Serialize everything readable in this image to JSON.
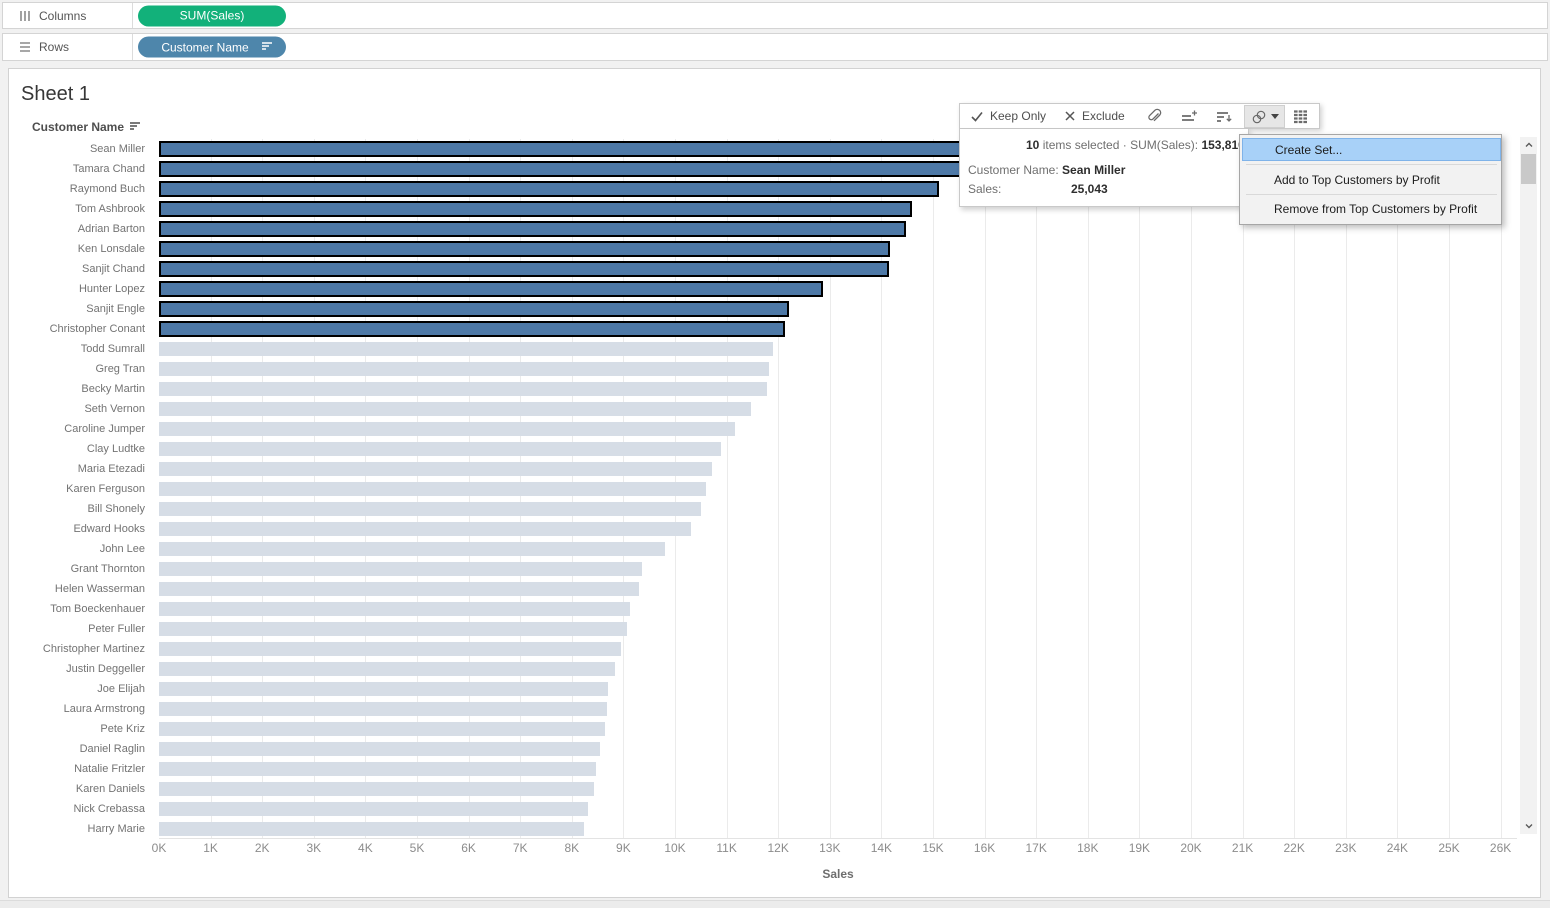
{
  "shelves": {
    "columns": {
      "label": "Columns",
      "pill": "SUM(Sales)"
    },
    "rows": {
      "label": "Rows",
      "pill": "Customer Name"
    }
  },
  "sheet": {
    "title": "Sheet 1"
  },
  "row_header": {
    "label": "Customer Name"
  },
  "axis": {
    "title": "Sales"
  },
  "tooltip": {
    "keep_only": "Keep Only",
    "exclude": "Exclude",
    "summary": {
      "count": "10",
      "items_text": "items selected",
      "separator": "·",
      "measure_label": "SUM(Sales):",
      "measure_value": "153,810"
    },
    "detail": {
      "dimension_label": "Customer Name:",
      "dimension_value": "Sean Miller",
      "measure_label": "Sales:",
      "measure_value": "25,043"
    }
  },
  "context_menu": {
    "highlighted_index": 0,
    "items": [
      "Create Set...",
      "Add to Top Customers by Profit",
      "Remove from Top Customers by Profit"
    ]
  },
  "chart_data": {
    "type": "bar",
    "orientation": "horizontal",
    "title": "Sheet 1",
    "xlabel": "Sales",
    "ylabel": "Customer Name",
    "xlim": [
      0,
      26000
    ],
    "grid": true,
    "x_ticks": [
      "0K",
      "1K",
      "2K",
      "3K",
      "4K",
      "5K",
      "6K",
      "7K",
      "8K",
      "9K",
      "10K",
      "11K",
      "12K",
      "13K",
      "14K",
      "15K",
      "16K",
      "17K",
      "18K",
      "19K",
      "20K",
      "21K",
      "22K",
      "23K",
      "24K",
      "25K",
      "26K"
    ],
    "selected_count": 10,
    "categories": [
      "Sean Miller",
      "Tamara Chand",
      "Raymond Buch",
      "Tom Ashbrook",
      "Adrian Barton",
      "Ken Lonsdale",
      "Sanjit Chand",
      "Hunter Lopez",
      "Sanjit Engle",
      "Christopher Conant",
      "Todd Sumrall",
      "Greg Tran",
      "Becky Martin",
      "Seth Vernon",
      "Caroline Jumper",
      "Clay Ludtke",
      "Maria Etezadi",
      "Karen Ferguson",
      "Bill Shonely",
      "Edward Hooks",
      "John Lee",
      "Grant Thornton",
      "Helen Wasserman",
      "Tom Boeckenhauer",
      "Peter Fuller",
      "Christopher Martinez",
      "Justin Deggeller",
      "Joe Elijah",
      "Laura Armstrong",
      "Pete Kriz",
      "Daniel Raglin",
      "Natalie Fritzler",
      "Karen Daniels",
      "Nick Crebassa",
      "Harry Marie"
    ],
    "values": [
      25043,
      19052,
      15117,
      14596,
      14474,
      14175,
      14142,
      12873,
      12209,
      12129,
      11892,
      11820,
      11790,
      11471,
      11165,
      10881,
      10723,
      10604,
      10502,
      10311,
      9801,
      9351,
      9300,
      9134,
      9063,
      8954,
      8829,
      8699,
      8673,
      8647,
      8539,
      8460,
      8424,
      8321,
      8237
    ],
    "colors": {
      "selected_bar": "#4e79a7",
      "unselected_bar": "#d6dde6",
      "selection_border": "#000000"
    }
  },
  "colors": {
    "columns_pill": "#12b17a",
    "rows_pill": "#4e86ab",
    "menu_highlight": "#a8d1f8"
  }
}
